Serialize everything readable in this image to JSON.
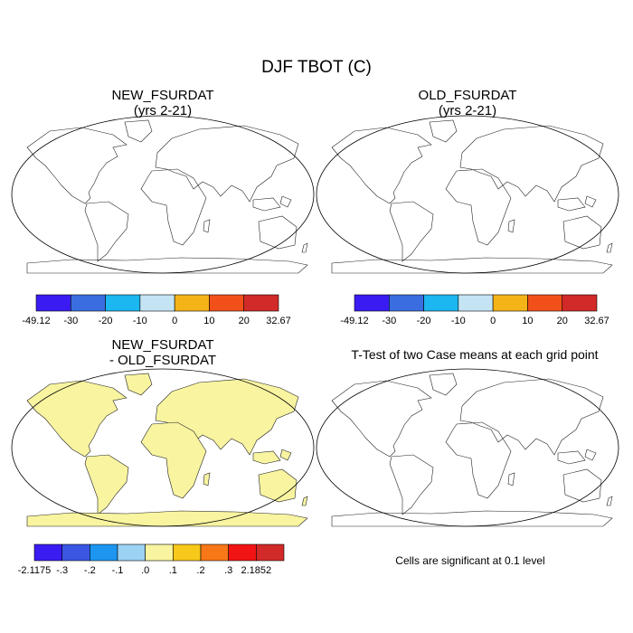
{
  "title": "DJF TBOT (C)",
  "panels": [
    {
      "line1": "NEW_FSURDAT",
      "line2": "(yrs 2-21)"
    },
    {
      "line1": "OLD_FSURDAT",
      "line2": "(yrs 2-21)"
    },
    {
      "line1": "NEW_FSURDAT",
      "line2": "- OLD_FSURDAT"
    },
    {
      "line1": "T-Test of two Case means at each grid point",
      "line2": ""
    }
  ],
  "significance_note": "Cells are significant at 0.1 level",
  "chart_data": [
    {
      "type": "heatmap",
      "title": "NEW_FSURDAT (yrs 2-21)",
      "projection": "robinson",
      "colorbar": {
        "labels": [
          "-49.12",
          "-30",
          "-20",
          "-10",
          "0",
          "10",
          "20",
          "32.67"
        ],
        "colors": [
          "#3a1cf2",
          "#3a6ee0",
          "#1cb6f0",
          "#c4e4f4",
          "#f4b418",
          "#f2501a",
          "#d22a28"
        ]
      }
    },
    {
      "type": "heatmap",
      "title": "OLD_FSURDAT (yrs 2-21)",
      "projection": "robinson",
      "colorbar": {
        "labels": [
          "-49.12",
          "-30",
          "-20",
          "-10",
          "0",
          "10",
          "20",
          "32.67"
        ],
        "colors": [
          "#3a1cf2",
          "#3a6ee0",
          "#1cb6f0",
          "#c4e4f4",
          "#f4b418",
          "#f2501a",
          "#d22a28"
        ]
      }
    },
    {
      "type": "heatmap",
      "title": "NEW_FSURDAT - OLD_FSURDAT",
      "projection": "robinson",
      "colorbar": {
        "labels": [
          "-2.1175",
          "-.3",
          "-.2",
          "-.1",
          ".0",
          ".1",
          ".2",
          ".3",
          "2.1852"
        ],
        "colors": [
          "#3a1cf2",
          "#3a56e2",
          "#1c96f0",
          "#9cd2f4",
          "#f8f4a0",
          "#f8c81a",
          "#f87818",
          "#f21414",
          "#d22a28"
        ]
      }
    },
    {
      "type": "heatmap",
      "title": "T-Test of two Case means at each grid point",
      "projection": "robinson",
      "note": "Cells are significant at 0.1 level"
    }
  ]
}
